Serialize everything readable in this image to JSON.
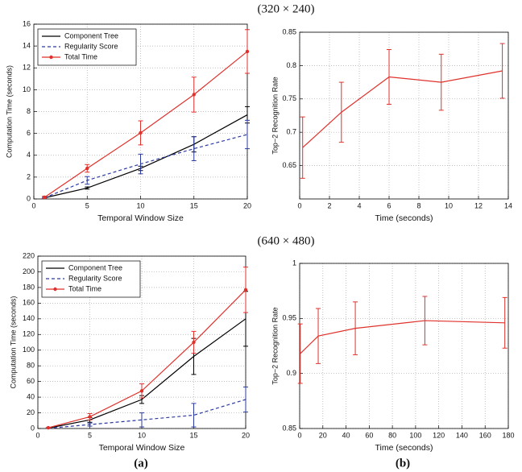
{
  "figure": {
    "top_caption": "(320 × 240)",
    "bottom_caption": "(640 × 480)",
    "left_label": "(a)",
    "right_label": "(b)"
  },
  "chart_data": [
    {
      "type": "line",
      "xlabel": "Temporal Window Size",
      "ylabel": "Computation Time (seconds)",
      "x": [
        1,
        5,
        10,
        15,
        20
      ],
      "xlim": [
        0,
        20
      ],
      "xticks": [
        0,
        5,
        10,
        15,
        20
      ],
      "ylim": [
        0,
        16
      ],
      "yticks": [
        0,
        2,
        4,
        6,
        8,
        10,
        12,
        14,
        16
      ],
      "grid": true,
      "legend": "upper left",
      "series": [
        {
          "name": "Component Tree",
          "color": "#000000",
          "linestyle": "solid",
          "marker": null,
          "values": [
            0.1,
            1.0,
            2.8,
            5.0,
            7.7
          ],
          "errors": [
            0.05,
            0.1,
            0.2,
            0.7,
            0.75
          ]
        },
        {
          "name": "Regularity Score",
          "color": "#2b3aa0",
          "linestyle": "dashed",
          "marker": null,
          "values": [
            0.1,
            1.7,
            3.2,
            4.6,
            5.9
          ],
          "errors": [
            0.05,
            0.35,
            0.9,
            1.1,
            1.3
          ]
        },
        {
          "name": "Total Time",
          "color": "#e0312b",
          "linestyle": "solid",
          "marker": "o",
          "values": [
            0.15,
            2.8,
            6.05,
            9.55,
            13.5
          ],
          "errors": [
            0.1,
            0.35,
            1.1,
            1.6,
            2.0
          ]
        }
      ]
    },
    {
      "type": "line",
      "xlabel": "Time (seconds)",
      "ylabel": "Top−2 Recognition Rate",
      "x": [
        0.2,
        2.8,
        6.0,
        9.5,
        13.6
      ],
      "xlim": [
        0,
        14
      ],
      "xticks": [
        0,
        2,
        4,
        6,
        8,
        10,
        12,
        14
      ],
      "ylim": [
        0.6,
        0.85
      ],
      "yticks": [
        0.65,
        0.7,
        0.75,
        0.8,
        0.85
      ],
      "grid": true,
      "series": [
        {
          "color": "#e0312b",
          "linestyle": "solid",
          "marker": null,
          "values": [
            0.677,
            0.73,
            0.783,
            0.775,
            0.792
          ],
          "errors": [
            0.046,
            0.045,
            0.041,
            0.042,
            0.041
          ]
        }
      ]
    },
    {
      "type": "line",
      "xlabel": "Temporal Window Size",
      "ylabel": "Computation Time (seconds)",
      "x": [
        1,
        5,
        10,
        15,
        20
      ],
      "xlim": [
        0,
        20
      ],
      "xticks": [
        0,
        5,
        10,
        15,
        20
      ],
      "ylim": [
        0,
        220
      ],
      "yticks": [
        0,
        20,
        40,
        60,
        80,
        100,
        120,
        140,
        160,
        180,
        200,
        220
      ],
      "grid": true,
      "legend": "upper left",
      "series": [
        {
          "name": "Component Tree",
          "color": "#000000",
          "linestyle": "solid",
          "marker": null,
          "values": [
            0.5,
            11,
            37,
            92,
            140
          ],
          "errors": [
            0.2,
            3,
            5,
            23,
            35
          ]
        },
        {
          "name": "Regularity Score",
          "color": "#2b3aa0",
          "linestyle": "dashed",
          "marker": null,
          "values": [
            0.3,
            5,
            11,
            17,
            37
          ],
          "errors": [
            0.1,
            2,
            9,
            15,
            16
          ]
        },
        {
          "name": "Total Time",
          "color": "#e0312b",
          "linestyle": "solid",
          "marker": "o",
          "values": [
            1,
            15,
            48,
            110,
            177
          ],
          "errors": [
            0.3,
            4,
            9,
            14,
            29
          ]
        }
      ]
    },
    {
      "type": "line",
      "xlabel": "Time (seconds)",
      "ylabel": "Top−2 Recognition Rate",
      "x": [
        0.5,
        16,
        48,
        108,
        177
      ],
      "xlim": [
        0,
        180
      ],
      "xticks": [
        0,
        20,
        40,
        60,
        80,
        100,
        120,
        140,
        160,
        180
      ],
      "ylim": [
        0.85,
        1
      ],
      "yticks": [
        0.85,
        0.9,
        0.95,
        1
      ],
      "grid": true,
      "series": [
        {
          "color": "#e0312b",
          "linestyle": "solid",
          "marker": null,
          "values": [
            0.918,
            0.934,
            0.941,
            0.948,
            0.946
          ],
          "errors": [
            0.027,
            0.025,
            0.024,
            0.022,
            0.023
          ]
        }
      ]
    }
  ]
}
